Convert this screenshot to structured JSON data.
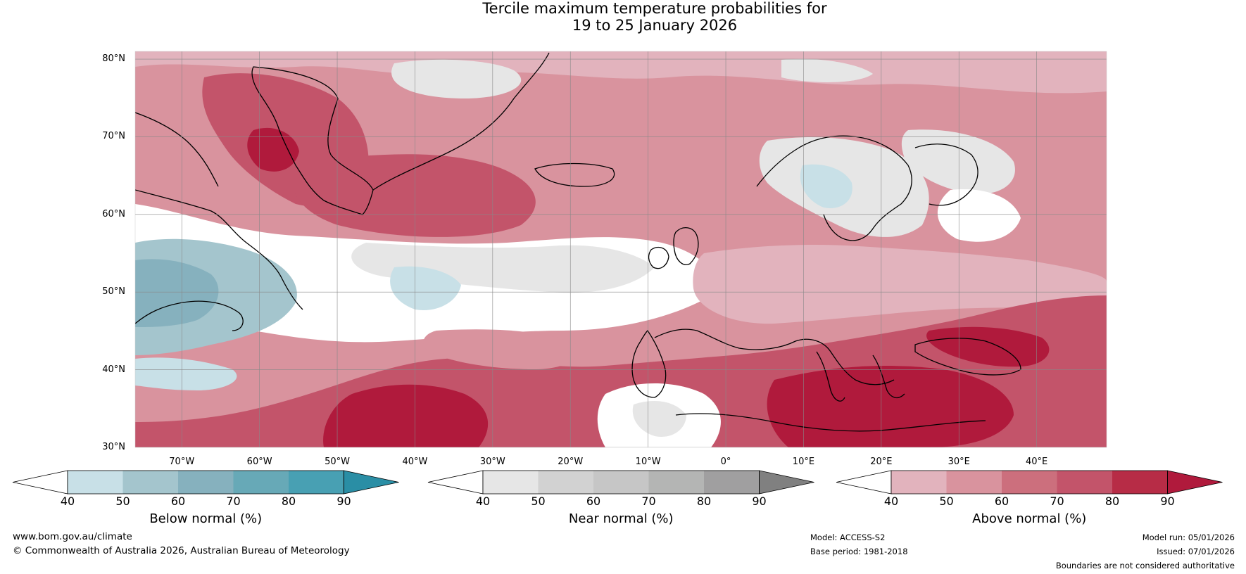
{
  "title": {
    "line1": "Tercile maximum temperature probabilities for",
    "line2": "19 to 25 January 2026"
  },
  "map": {
    "latitudes": [
      "30°N",
      "40°N",
      "50°N",
      "60°N",
      "70°N",
      "80°N"
    ],
    "longitudes": [
      "70°W",
      "60°W",
      "50°W",
      "40°W",
      "30°W",
      "20°W",
      "10°W",
      "0°",
      "10°E",
      "20°E",
      "30°E",
      "40°E"
    ],
    "lat_range": [
      30,
      81
    ],
    "lon_range": [
      -76,
      49
    ]
  },
  "colorbars": [
    {
      "label": "Below normal (%)",
      "ticks": [
        "40",
        "50",
        "60",
        "70",
        "80",
        "90"
      ],
      "colors": [
        "#ffffff",
        "#c8e0e7",
        "#a4c5cd",
        "#86b1be",
        "#67a9b7",
        "#48a0b3",
        "#2a8ea5"
      ]
    },
    {
      "label": "Near normal (%)",
      "ticks": [
        "40",
        "50",
        "60",
        "70",
        "80",
        "90"
      ],
      "colors": [
        "#ffffff",
        "#e6e6e6",
        "#d2d2d2",
        "#c6c6c6",
        "#b4b5b4",
        "#a09fa0",
        "#808080"
      ]
    },
    {
      "label": "Above normal (%)",
      "ticks": [
        "40",
        "50",
        "60",
        "70",
        "80",
        "90"
      ],
      "colors": [
        "#ffffff",
        "#e2b3bd",
        "#d9939e",
        "#cc6f7d",
        "#c3546a",
        "#b72c46",
        "#b01a3c"
      ]
    }
  ],
  "footer": {
    "website": "www.bom.gov.au/climate",
    "copyright": "© Commonwealth of Australia 2026, Australian Bureau of Meteorology",
    "model": "Model: ACCESS-S2",
    "base_period": "Base period: 1981-2018",
    "model_run": "Model run: 05/01/2026",
    "issued": "Issued: 07/01/2026",
    "disclaimer": "Boundaries are not considered authoritative"
  }
}
